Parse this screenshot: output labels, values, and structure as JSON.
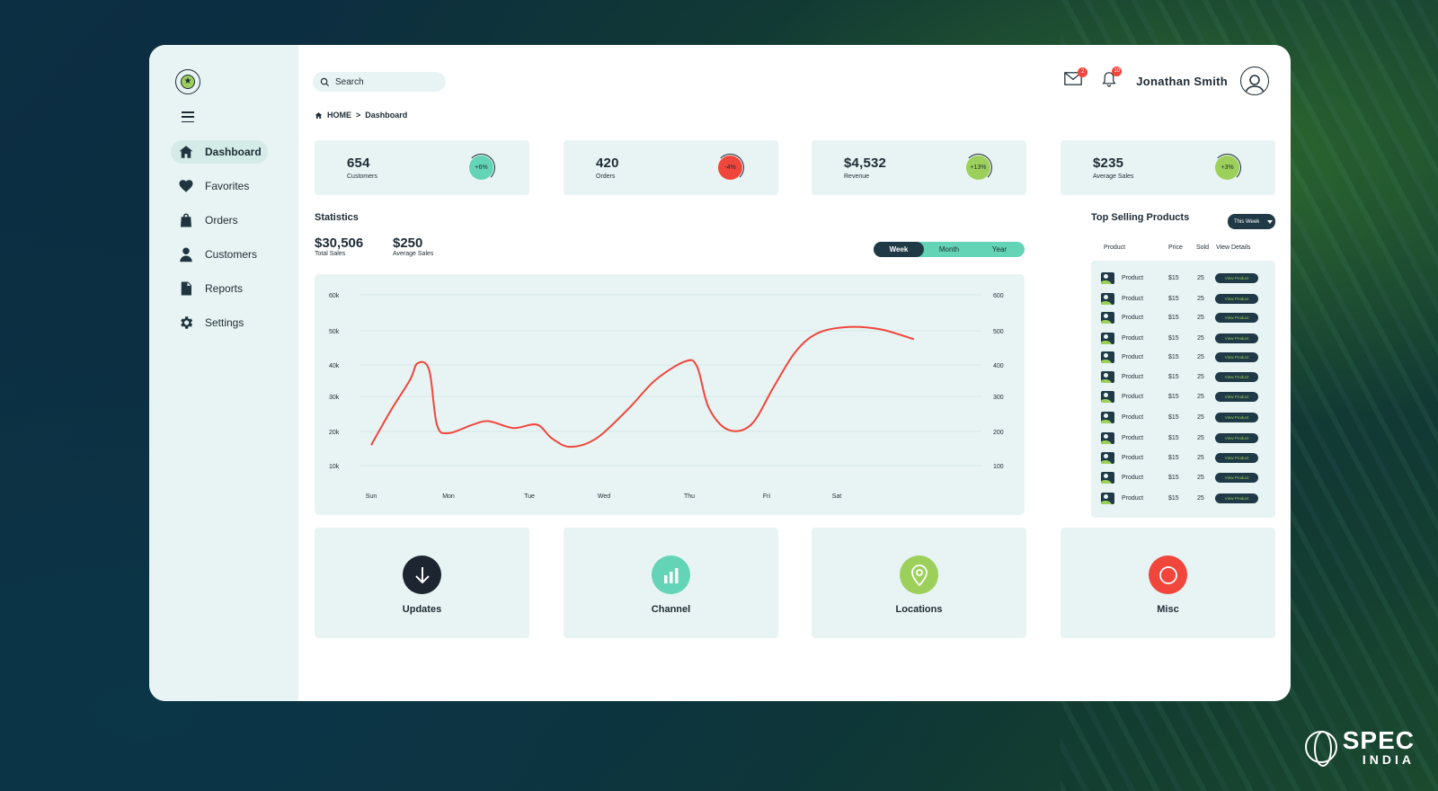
{
  "sidebar": {
    "items": [
      {
        "label": "Dashboard",
        "icon": "home-icon",
        "active": true
      },
      {
        "label": "Favorites",
        "icon": "heart-icon"
      },
      {
        "label": "Orders",
        "icon": "shopping-bag-icon"
      },
      {
        "label": "Customers",
        "icon": "user-icon"
      },
      {
        "label": "Reports",
        "icon": "document-icon"
      },
      {
        "label": "Settings",
        "icon": "gear-icon"
      }
    ]
  },
  "header": {
    "search_placeholder": "Search",
    "mail_badge": "2",
    "notification_badge": "10",
    "user_name": "Jonathan Smith"
  },
  "breadcrumb": {
    "home": "HOME",
    "separator": ">",
    "current": "Dashboard"
  },
  "kpis": [
    {
      "value": "654",
      "label": "Customers",
      "change": "+6%",
      "color": "#63d4b5"
    },
    {
      "value": "420",
      "label": "Orders",
      "change": "-4%",
      "color": "#f0463c"
    },
    {
      "value": "$4,532",
      "label": "Revenue",
      "change": "+13%",
      "color": "#9dd05b"
    },
    {
      "value": "$235",
      "label": "Average Sales",
      "change": "+3%",
      "color": "#9dd05b"
    }
  ],
  "statistics": {
    "title": "Statistics",
    "total_sales": "$30,506",
    "total_sales_label": "Total Sales",
    "average_sales": "$250",
    "average_sales_label": "Average Sales",
    "periods": [
      "Week",
      "Month",
      "Year"
    ],
    "selected_period": "Week"
  },
  "chart_data": {
    "type": "line",
    "title": "",
    "x": [
      "Sun",
      "Mon",
      "Tue",
      "Wed",
      "Thu",
      "Fri",
      "Sat"
    ],
    "left_axis": {
      "ticks": [
        "60k",
        "50k",
        "40k",
        "30k",
        "20k",
        "10k"
      ],
      "ylim": [
        10,
        60
      ],
      "unit": "k"
    },
    "right_axis": {
      "ticks": [
        "600",
        "500",
        "400",
        "300",
        "200",
        "100"
      ],
      "ylim": [
        100,
        600
      ]
    },
    "series": [
      {
        "color": "#f0463c",
        "points": [
          [
            0,
            16
          ],
          [
            0.25,
            26
          ],
          [
            0.5,
            35
          ],
          [
            0.6,
            40
          ],
          [
            0.75,
            38
          ],
          [
            0.85,
            22
          ],
          [
            1.0,
            19.5
          ],
          [
            1.3,
            22
          ],
          [
            1.5,
            23
          ],
          [
            1.8,
            21
          ],
          [
            2.1,
            22
          ],
          [
            2.3,
            18
          ],
          [
            2.55,
            15.5
          ],
          [
            2.9,
            18
          ],
          [
            3.3,
            27
          ],
          [
            3.6,
            35
          ],
          [
            3.95,
            40.5
          ],
          [
            4.1,
            39
          ],
          [
            4.25,
            27
          ],
          [
            4.5,
            20.5
          ],
          [
            4.8,
            22
          ],
          [
            5.1,
            33
          ],
          [
            5.4,
            43
          ],
          [
            5.7,
            48.5
          ],
          [
            6.1,
            50.5
          ],
          [
            6.6,
            50
          ],
          [
            7.1,
            47
          ]
        ]
      }
    ],
    "grid": true
  },
  "top_selling": {
    "title": "Top Selling Products",
    "filter": "This Week",
    "columns": [
      "Product",
      "Price",
      "Sold",
      "View Details"
    ],
    "rows": [
      {
        "name": "Product",
        "price": "$15",
        "sold": "25",
        "action": "View Product"
      },
      {
        "name": "Product",
        "price": "$15",
        "sold": "25",
        "action": "View Product"
      },
      {
        "name": "Product",
        "price": "$15",
        "sold": "25",
        "action": "View Product"
      },
      {
        "name": "Product",
        "price": "$15",
        "sold": "25",
        "action": "View Product"
      },
      {
        "name": "Product",
        "price": "$15",
        "sold": "25",
        "action": "View Product"
      },
      {
        "name": "Product",
        "price": "$15",
        "sold": "25",
        "action": "View Product"
      },
      {
        "name": "Product",
        "price": "$15",
        "sold": "25",
        "action": "View Product"
      },
      {
        "name": "Product",
        "price": "$15",
        "sold": "25",
        "action": "View Product"
      },
      {
        "name": "Product",
        "price": "$15",
        "sold": "25",
        "action": "View Product"
      },
      {
        "name": "Product",
        "price": "$15",
        "sold": "25",
        "action": "View Product"
      },
      {
        "name": "Product",
        "price": "$15",
        "sold": "25",
        "action": "View Product"
      },
      {
        "name": "Product",
        "price": "$15",
        "sold": "25",
        "action": "View Product"
      }
    ]
  },
  "tiles": [
    {
      "label": "Updates",
      "icon": "arrow-down-icon",
      "color": "#1d2530"
    },
    {
      "label": "Channel",
      "icon": "bar-chart-icon",
      "color": "#63d4b5"
    },
    {
      "label": "Locations",
      "icon": "location-pin-icon",
      "color": "#9dd05b"
    },
    {
      "label": "Misc",
      "icon": "circle-icon",
      "color": "#f0463c"
    }
  ],
  "brand": {
    "line1": "SPEC",
    "line2": "INDIA"
  }
}
